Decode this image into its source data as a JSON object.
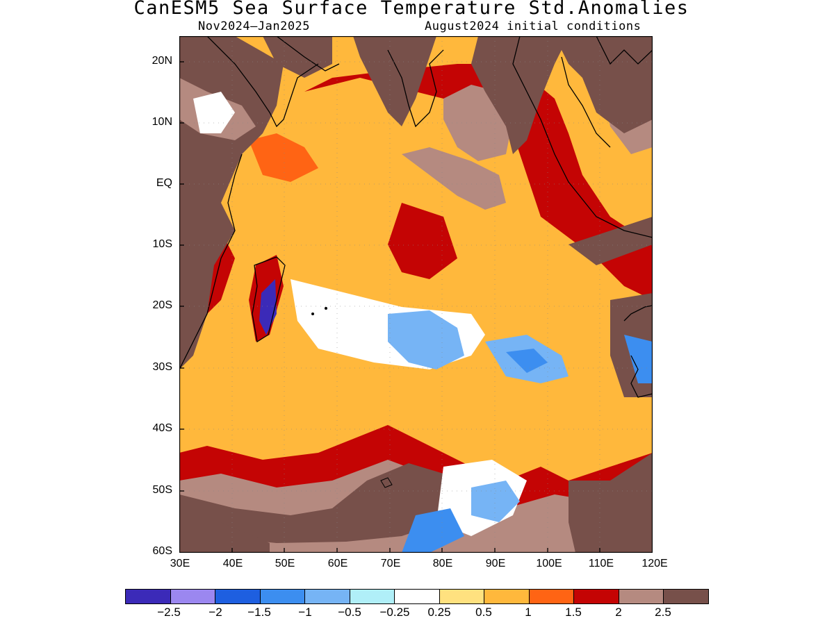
{
  "header": {
    "title": "CanESM5 Sea Surface Temperature Std.Anomalies",
    "period": "Nov2024–Jan2025",
    "init": "August2024 initial conditions"
  },
  "map": {
    "lat_ticks": [
      "20N",
      "10N",
      "EQ",
      "10S",
      "20S",
      "30S",
      "40S",
      "50S",
      "60S"
    ],
    "lon_ticks": [
      "30E",
      "40E",
      "50E",
      "60E",
      "70E",
      "80E",
      "90E",
      "100E",
      "110E",
      "120E"
    ],
    "lon_range": [
      30,
      120
    ],
    "lat_range": [
      -60,
      24
    ],
    "land_color": "#77504a"
  },
  "legend": {
    "colors": [
      "#3b2ab8",
      "#9b87f0",
      "#1e5fe0",
      "#3c8ef0",
      "#76b4f5",
      "#b0eff8",
      "#ffffff",
      "#ffe17f",
      "#ffb83c",
      "#ff6414",
      "#c40404",
      "#b58a80",
      "#77504a"
    ],
    "labels": [
      "−2.5",
      "−2",
      "−1.5",
      "−1",
      "−0.5",
      "−0.25",
      "0.25",
      "0.5",
      "1",
      "1.5",
      "2",
      "2.5"
    ]
  }
}
